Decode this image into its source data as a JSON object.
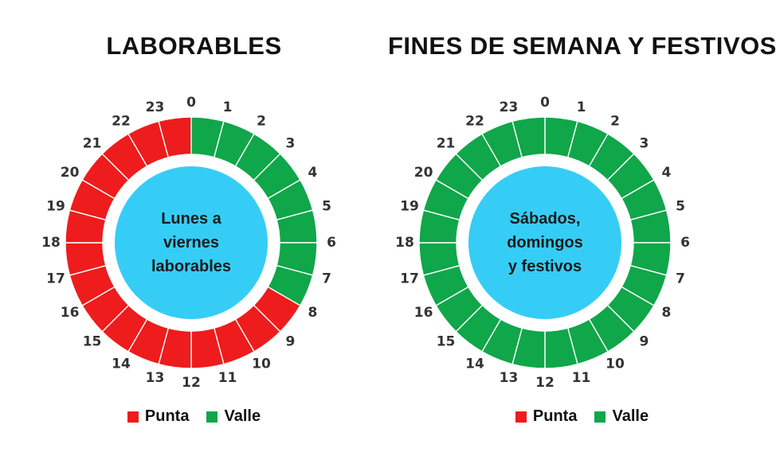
{
  "colors": {
    "punta": "#ee1c1c",
    "valle": "#10a64a",
    "center": "#35cdf6"
  },
  "legend": {
    "punta_label": "Punta",
    "valle_label": "Valle"
  },
  "chart_data": [
    {
      "type": "pie",
      "title": "LABORABLES",
      "center_text": [
        "Lunes a",
        "viernes",
        "laborables"
      ],
      "categories": [
        "0",
        "1",
        "2",
        "3",
        "4",
        "5",
        "6",
        "7",
        "8",
        "9",
        "10",
        "11",
        "12",
        "13",
        "14",
        "15",
        "16",
        "17",
        "18",
        "19",
        "20",
        "21",
        "22",
        "23"
      ],
      "periods": [
        "Valle",
        "Valle",
        "Valle",
        "Valle",
        "Valle",
        "Valle",
        "Valle",
        "Valle",
        "Punta",
        "Punta",
        "Punta",
        "Punta",
        "Punta",
        "Punta",
        "Punta",
        "Punta",
        "Punta",
        "Punta",
        "Punta",
        "Punta",
        "Punta",
        "Punta",
        "Punta",
        "Punta"
      ]
    },
    {
      "type": "pie",
      "title": "FINES DE SEMANA Y FESTIVOS",
      "center_text": [
        "Sábados,",
        "domingos",
        "y festivos"
      ],
      "categories": [
        "0",
        "1",
        "2",
        "3",
        "4",
        "5",
        "6",
        "7",
        "8",
        "9",
        "10",
        "11",
        "12",
        "13",
        "14",
        "15",
        "16",
        "17",
        "18",
        "19",
        "20",
        "21",
        "22",
        "23"
      ],
      "periods": [
        "Valle",
        "Valle",
        "Valle",
        "Valle",
        "Valle",
        "Valle",
        "Valle",
        "Valle",
        "Valle",
        "Valle",
        "Valle",
        "Valle",
        "Valle",
        "Valle",
        "Valle",
        "Valle",
        "Valle",
        "Valle",
        "Valle",
        "Valle",
        "Valle",
        "Valle",
        "Valle",
        "Valle"
      ]
    }
  ]
}
